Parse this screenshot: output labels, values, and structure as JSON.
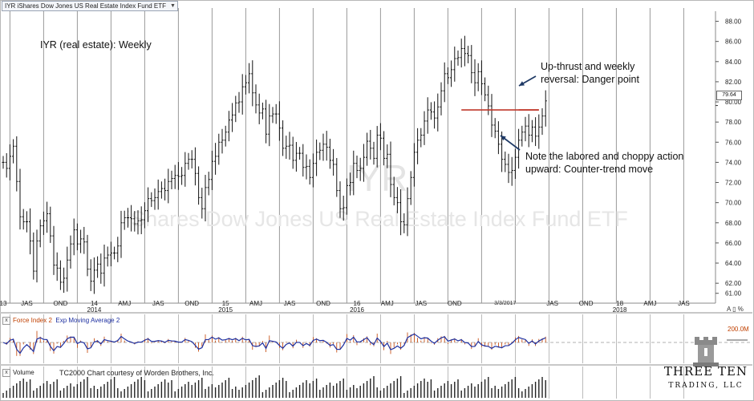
{
  "symbol_box": "IYR iShares Dow Jones US Real Estate Index Fund ETF",
  "annotations": {
    "chart_title": "IYR (real estate):  Weekly",
    "upthrust_line1": "Up-thrust and weekly",
    "upthrust_line2": "reversal:  Danger point",
    "labored_line1": "Note the labored and choppy action",
    "labored_line2": "upward:  Counter-trend move",
    "watermark_symbol": "IYR",
    "watermark_name": "iShares Dow Jones US Real Estate Index Fund ETF"
  },
  "current_price_label": "79.64",
  "cursor_date_label": "3/3/2017",
  "right_axis_icons": "A ▯ %",
  "force_pane": {
    "close_icon": "x",
    "name": "Force Index 2",
    "ema_name": "Exp Moving Average 2",
    "scale_label": "200.0M"
  },
  "volume_pane": {
    "close_icon": "x",
    "name": "Volume",
    "credit": "TC2000 Chart courtesy of Worden Brothers, Inc."
  },
  "logo": {
    "title": "THREE TEN",
    "subtitle": "TRADING, LLC"
  },
  "colors": {
    "price_bars": "#111111",
    "resistance_line": "#c0392b",
    "arrow": "#1f3a66",
    "force_index": "#c04000",
    "ema": "#1d2fa0",
    "grid": "#9a9a9a"
  },
  "chart_data": {
    "type": "ohlc",
    "timeframe": "weekly",
    "y_ticks": [
      88,
      86,
      84,
      82,
      80,
      78,
      76,
      74,
      72,
      70,
      68,
      66,
      64,
      62,
      61
    ],
    "ylim": [
      60.5,
      89
    ],
    "x_tick_labels": [
      {
        "label": "13",
        "week": 0
      },
      {
        "label": "JAS",
        "week": 7
      },
      {
        "label": "OND",
        "week": 17
      },
      {
        "label": "14",
        "week": 27
      },
      {
        "label": "AMJ",
        "week": 36
      },
      {
        "label": "JAS",
        "week": 46
      },
      {
        "label": "OND",
        "week": 56
      },
      {
        "label": "15",
        "week": 66
      },
      {
        "label": "AMJ",
        "week": 75
      },
      {
        "label": "JAS",
        "week": 85
      },
      {
        "label": "OND",
        "week": 95
      },
      {
        "label": "16",
        "week": 105
      },
      {
        "label": "AMJ",
        "week": 114
      },
      {
        "label": "JAS",
        "week": 124
      },
      {
        "label": "OND",
        "week": 134
      },
      {
        "label": "JAS",
        "week": 163
      },
      {
        "label": "OND",
        "week": 173
      },
      {
        "label": "18",
        "week": 183
      },
      {
        "label": "AMJ",
        "week": 192
      },
      {
        "label": "JAS",
        "week": 202
      }
    ],
    "year_labels": [
      {
        "label": "2014",
        "week": 27
      },
      {
        "label": "2015",
        "week": 66
      },
      {
        "label": "2016",
        "week": 105
      },
      {
        "label": "2018",
        "week": 183
      }
    ],
    "cursor_week": 149,
    "resistance": {
      "price": 79.2,
      "from_week": 136,
      "to_week": 159
    },
    "weekly_closes": [
      74.0,
      73.4,
      74.6,
      75.6,
      72.1,
      68.6,
      68.1,
      68.1,
      66.2,
      63.2,
      66.2,
      67.7,
      68.2,
      68.9,
      66.7,
      63.8,
      63.5,
      62.1,
      62.5,
      64.3,
      65.9,
      67.3,
      65.9,
      66.4,
      66.1,
      63.4,
      62.2,
      63.3,
      63.9,
      63.0,
      64.5,
      64.8,
      65.0,
      65.0,
      65.7,
      68.0,
      68.5,
      68.5,
      68.4,
      67.9,
      68.2,
      68.3,
      69.2,
      70.4,
      70.2,
      70.5,
      71.1,
      71.4,
      71.2,
      72.1,
      72.4,
      72.7,
      72.6,
      72.7,
      73.9,
      74.3,
      74.3,
      72.9,
      70.5,
      69.4,
      71.5,
      72.3,
      74.1,
      74.6,
      76.0,
      76.2,
      77.0,
      78.2,
      78.7,
      79.9,
      80.0,
      81.5,
      81.9,
      82.8,
      80.9,
      79.7,
      78.9,
      79.3,
      76.8,
      78.6,
      78.8,
      78.8,
      77.4,
      75.4,
      75.6,
      75.7,
      74.2,
      74.9,
      74.9,
      73.5,
      73.6,
      72.5,
      73.9,
      75.0,
      75.2,
      75.8,
      75.5,
      74.2,
      73.8,
      71.2,
      69.4,
      69.5,
      71.7,
      72.0,
      73.9,
      73.2,
      73.4,
      74.5,
      76.1,
      75.4,
      74.4,
      76.7,
      76.4,
      74.4,
      74.8,
      71.8,
      70.5,
      70.0,
      68.1,
      67.8,
      70.4,
      72.5,
      75.0,
      76.2,
      76.7,
      78.1,
      79.2,
      79.0,
      78.4,
      79.5,
      81.1,
      82.8,
      82.4,
      83.2,
      84.3,
      84.4,
      85.3,
      84.8,
      84.6,
      82.9,
      81.9,
      83.0,
      81.8,
      80.7,
      79.6,
      77.7,
      77.1,
      75.8,
      74.3,
      73.8,
      73.0,
      73.2,
      74.5,
      76.2,
      77.0,
      77.6,
      76.7,
      77.5,
      76.6,
      77.5,
      78.6,
      80.1
    ]
  }
}
